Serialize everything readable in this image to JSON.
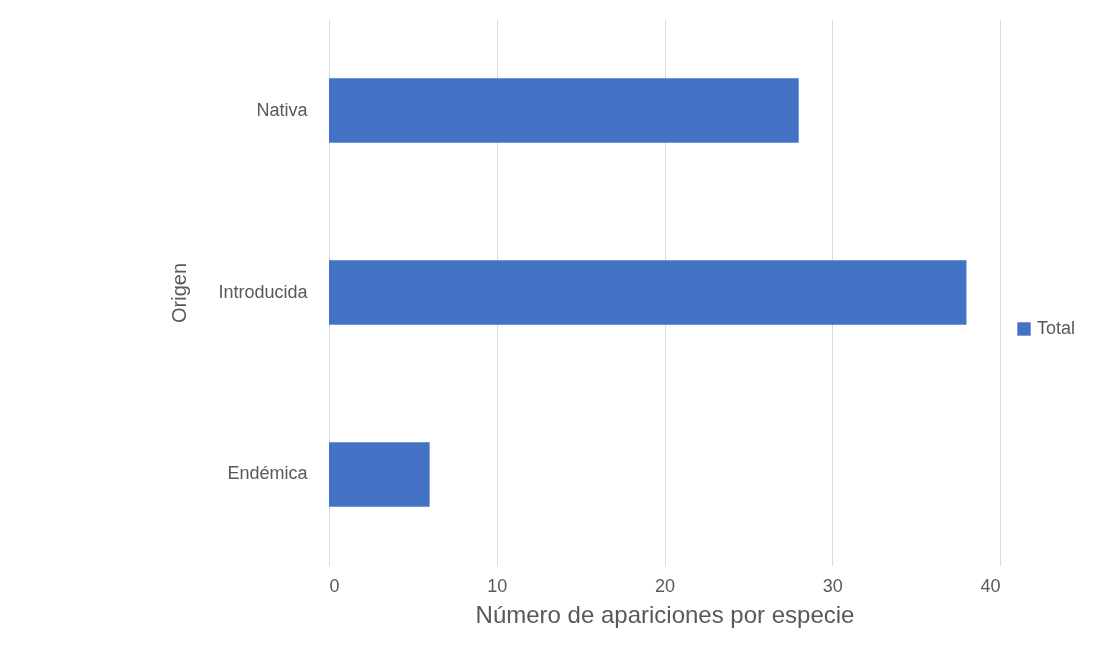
{
  "chart_data": {
    "type": "bar",
    "orientation": "horizontal",
    "xlabel": "Número de apariciones por especie",
    "ylabel": "Origen",
    "categories": [
      "Nativa",
      "Introducida",
      "Endémica"
    ],
    "series": [
      {
        "name": "Total",
        "color": "#4472c4",
        "values": [
          28,
          38,
          6
        ]
      }
    ],
    "xlim": [
      0,
      40
    ],
    "xticks": [
      0,
      10,
      20,
      30,
      40
    ],
    "grid": "x",
    "legend": "right"
  }
}
